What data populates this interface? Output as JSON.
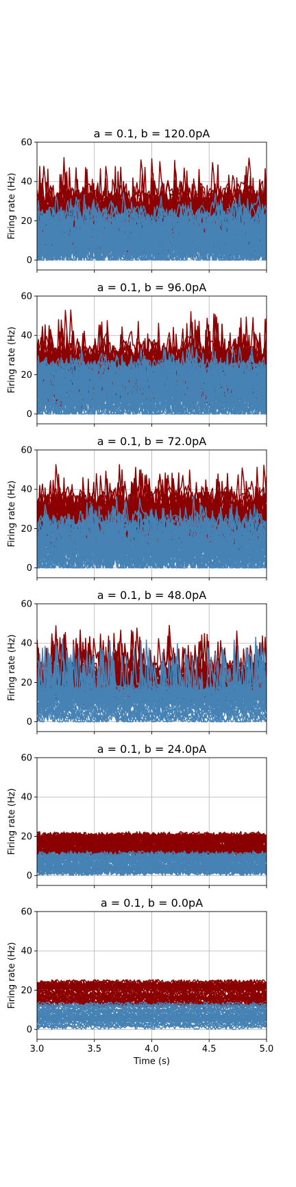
{
  "figure": {
    "xlabel": "Time (s)"
  },
  "colors": {
    "excitatory": "#8b0000",
    "inhibitory": "#4682b4",
    "grid": "#b0b0b0",
    "background": "#ffffff"
  },
  "chart_data": [
    {
      "type": "line",
      "title": "a = 0.1, b = 120.0pA",
      "ylabel": "Firing rate (Hz)",
      "xlim": [
        3.0,
        5.0
      ],
      "ylim": [
        -5,
        60
      ],
      "yticks": [
        "0",
        "20",
        "40",
        "60"
      ],
      "grid": true,
      "series": [
        {
          "color": "#8b0000",
          "base_low": 8,
          "base_high": 30,
          "noise": 14,
          "peak": 60,
          "bursty": true
        },
        {
          "color": "#4682b4",
          "base_low": 0,
          "base_high": 22,
          "noise": 10,
          "peak": 35,
          "bursty": true
        }
      ]
    },
    {
      "type": "line",
      "title": "a = 0.1, b = 96.0pA",
      "ylabel": "Firing rate (Hz)",
      "xlim": [
        3.0,
        5.0
      ],
      "ylim": [
        -5,
        60
      ],
      "yticks": [
        "0",
        "20",
        "40",
        "60"
      ],
      "grid": true,
      "series": [
        {
          "color": "#8b0000",
          "base_low": 10,
          "base_high": 30,
          "noise": 13,
          "peak": 60,
          "bursty": true
        },
        {
          "color": "#4682b4",
          "base_low": 0,
          "base_high": 22,
          "noise": 10,
          "peak": 35,
          "bursty": true
        }
      ]
    },
    {
      "type": "line",
      "title": "a = 0.1, b = 72.0pA",
      "ylabel": "Firing rate (Hz)",
      "xlim": [
        3.0,
        5.0
      ],
      "ylim": [
        -5,
        60
      ],
      "yticks": [
        "0",
        "20",
        "40",
        "60"
      ],
      "grid": true,
      "series": [
        {
          "color": "#8b0000",
          "base_low": 12,
          "base_high": 32,
          "noise": 12,
          "peak": 60,
          "bursty": true
        },
        {
          "color": "#4682b4",
          "base_low": 0,
          "base_high": 22,
          "noise": 9,
          "peak": 40,
          "bursty": true
        }
      ]
    },
    {
      "type": "line",
      "title": "a = 0.1, b = 48.0pA",
      "ylabel": "Firing rate (Hz)",
      "xlim": [
        3.0,
        5.0
      ],
      "ylim": [
        -5,
        60
      ],
      "yticks": [
        "0",
        "20",
        "40",
        "60"
      ],
      "grid": true,
      "series": [
        {
          "color": "#8b0000",
          "base_low": 12,
          "base_high": 26,
          "noise": 7,
          "peak": 60,
          "bursty": true
        },
        {
          "color": "#4682b4",
          "base_low": 0,
          "base_high": 16,
          "noise": 5,
          "peak": 60,
          "bursty": true
        }
      ]
    },
    {
      "type": "line",
      "title": "a = 0.1, b = 24.0pA",
      "ylabel": "Firing rate (Hz)",
      "xlim": [
        3.0,
        5.0
      ],
      "ylim": [
        -5,
        60
      ],
      "yticks": [
        "0",
        "20",
        "40",
        "60"
      ],
      "grid": true,
      "series": [
        {
          "color": "#8b0000",
          "base_low": 11,
          "base_high": 20,
          "noise": 2.5,
          "peak": 27,
          "bursty": false
        },
        {
          "color": "#4682b4",
          "base_low": 2,
          "base_high": 11,
          "noise": 2,
          "peak": 14,
          "bursty": false
        }
      ]
    },
    {
      "type": "line",
      "title": "a = 0.1, b = 0.0pA",
      "ylabel": "Firing rate (Hz)",
      "xlim": [
        3.0,
        5.0
      ],
      "ylim": [
        -5,
        60
      ],
      "yticks": [
        "0",
        "20",
        "40",
        "60"
      ],
      "xticks": [
        "3.0",
        "3.5",
        "4.0",
        "4.5",
        "5.0"
      ],
      "xlabel": "Time (s)",
      "grid": true,
      "series": [
        {
          "color": "#8b0000",
          "base_low": 12,
          "base_high": 24,
          "noise": 1.5,
          "peak": 27,
          "bursty": false
        },
        {
          "color": "#4682b4",
          "base_low": 1,
          "base_high": 13,
          "noise": 1.2,
          "peak": 14,
          "bursty": false
        }
      ]
    }
  ]
}
